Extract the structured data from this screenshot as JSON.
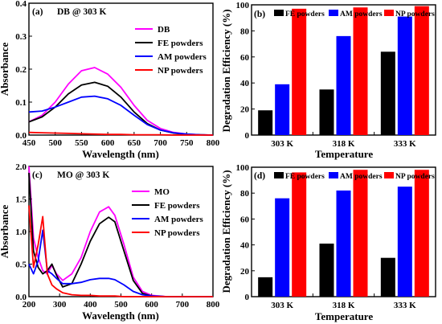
{
  "figure": {
    "panel_a": {
      "label": "(a)",
      "title": "DB @ 303 K",
      "xlabel": "Wavelength (nm)",
      "ylabel": "Absorbance",
      "x_ticks": [
        "450",
        "500",
        "550",
        "600",
        "650",
        "700",
        "750",
        "800"
      ],
      "y_ticks": [
        "0.0",
        "0.1",
        "0.2",
        "0.3",
        "0.4"
      ]
    },
    "panel_b": {
      "label": "(b)",
      "xlabel": "Temperature",
      "ylabel": "Degradation Efficiency (%)",
      "x_ticks": [
        "303 K",
        "318 K",
        "333 K"
      ],
      "y_ticks": [
        "0",
        "20",
        "40",
        "60",
        "80",
        "100"
      ]
    },
    "panel_c": {
      "label": "(c)",
      "title": "MO @ 303 K",
      "xlabel": "Wavelength (nm)",
      "ylabel": "Absorbance",
      "x_ticks": [
        "200",
        "300",
        "400",
        "500",
        "600",
        "700",
        "800"
      ],
      "y_ticks": [
        "0.0",
        "0.5",
        "1.0",
        "1.5",
        "2.0"
      ]
    },
    "panel_d": {
      "label": "(d)",
      "xlabel": "Temperature",
      "ylabel": "Degradation Efficiency (%)",
      "x_ticks": [
        "303 K",
        "318 K",
        "333 K"
      ],
      "y_ticks": [
        "0",
        "20",
        "40",
        "60",
        "80",
        "100"
      ]
    }
  },
  "chart_data": [
    {
      "id": "a",
      "type": "line",
      "title": "DB @ 303 K",
      "xlabel": "Wavelength (nm)",
      "ylabel": "Absorbance",
      "xlim": [
        450,
        800
      ],
      "ylim": [
        0,
        0.4
      ],
      "legend_position": "top-right",
      "grid": false,
      "x": [
        450,
        475,
        500,
        525,
        550,
        575,
        600,
        625,
        650,
        675,
        700,
        725,
        750,
        775,
        800
      ],
      "series": [
        {
          "name": "DB",
          "color": "#ff00ff",
          "values": [
            0.04,
            0.06,
            0.1,
            0.155,
            0.195,
            0.205,
            0.185,
            0.145,
            0.09,
            0.045,
            0.02,
            0.008,
            0.003,
            0.001,
            0.0
          ]
        },
        {
          "name": "FE powders",
          "color": "#000000",
          "values": [
            0.04,
            0.055,
            0.085,
            0.125,
            0.152,
            0.16,
            0.148,
            0.115,
            0.07,
            0.035,
            0.015,
            0.006,
            0.002,
            0.001,
            0.0
          ]
        },
        {
          "name": "AM powders",
          "color": "#0000ff",
          "values": [
            0.07,
            0.073,
            0.085,
            0.1,
            0.115,
            0.118,
            0.11,
            0.09,
            0.06,
            0.032,
            0.015,
            0.007,
            0.003,
            0.001,
            0.0
          ]
        },
        {
          "name": "NP powders",
          "color": "#ff0000",
          "values": [
            0.008,
            0.007,
            0.006,
            0.005,
            0.004,
            0.003,
            0.002,
            0.002,
            0.001,
            0.001,
            0.001,
            0.0,
            0.0,
            0.0,
            0.0
          ]
        }
      ]
    },
    {
      "id": "b",
      "type": "bar",
      "xlabel": "Temperature",
      "ylabel": "Degradation Efficiency (%)",
      "ylim": [
        0,
        100
      ],
      "legend_position": "top",
      "categories": [
        "303 K",
        "318 K",
        "333 K"
      ],
      "series": [
        {
          "name": "FE powders",
          "color": "#000000",
          "values": [
            19,
            35,
            64
          ]
        },
        {
          "name": "AM powders",
          "color": "#0000ff",
          "values": [
            39,
            76,
            91
          ]
        },
        {
          "name": "NP powders",
          "color": "#ff0000",
          "values": [
            97,
            98,
            99
          ]
        }
      ]
    },
    {
      "id": "c",
      "type": "line",
      "title": "MO @ 303 K",
      "xlabel": "Wavelength (nm)",
      "ylabel": "Absorbance",
      "xlim": [
        200,
        800
      ],
      "ylim": [
        0,
        2.0
      ],
      "legend_position": "top-right",
      "grid": false,
      "x": [
        200,
        215,
        230,
        245,
        260,
        275,
        290,
        310,
        340,
        370,
        400,
        430,
        460,
        480,
        510,
        540,
        570,
        600,
        650,
        700,
        800
      ],
      "series": [
        {
          "name": "MO",
          "color": "#ff00ff",
          "values": [
            2.0,
            0.9,
            0.6,
            0.4,
            0.35,
            0.48,
            0.35,
            0.25,
            0.35,
            0.6,
            1.0,
            1.3,
            1.38,
            1.25,
            0.8,
            0.3,
            0.08,
            0.02,
            0.0,
            0.0,
            0.0
          ]
        },
        {
          "name": "FE powders",
          "color": "#000000",
          "values": [
            1.9,
            0.7,
            0.45,
            0.35,
            0.4,
            0.5,
            0.33,
            0.15,
            0.2,
            0.5,
            0.85,
            1.12,
            1.22,
            1.15,
            0.7,
            0.25,
            0.05,
            0.01,
            0.0,
            0.0,
            0.0
          ]
        },
        {
          "name": "AM powders",
          "color": "#0000ff",
          "values": [
            0.5,
            0.35,
            0.55,
            1.02,
            0.4,
            0.35,
            0.28,
            0.2,
            0.2,
            0.22,
            0.26,
            0.28,
            0.28,
            0.26,
            0.18,
            0.08,
            0.03,
            0.01,
            0.0,
            0.0,
            0.0
          ]
        },
        {
          "name": "NP powders",
          "color": "#ff0000",
          "values": [
            1.4,
            0.45,
            0.8,
            1.23,
            0.35,
            0.18,
            0.12,
            0.06,
            0.03,
            0.02,
            0.02,
            0.01,
            0.01,
            0.01,
            0.0,
            0.0,
            0.0,
            0.0,
            0.0,
            0.0,
            0.0
          ]
        }
      ]
    },
    {
      "id": "d",
      "type": "bar",
      "xlabel": "Temperature",
      "ylabel": "Degradation Efficiency (%)",
      "ylim": [
        0,
        100
      ],
      "legend_position": "top",
      "categories": [
        "303 K",
        "318 K",
        "333 K"
      ],
      "series": [
        {
          "name": "FE powders",
          "color": "#000000",
          "values": [
            15,
            41,
            30
          ]
        },
        {
          "name": "AM powders",
          "color": "#0000ff",
          "values": [
            76,
            82,
            85
          ]
        },
        {
          "name": "NP powders",
          "color": "#ff0000",
          "values": [
            96,
            98,
            98
          ]
        }
      ]
    }
  ]
}
